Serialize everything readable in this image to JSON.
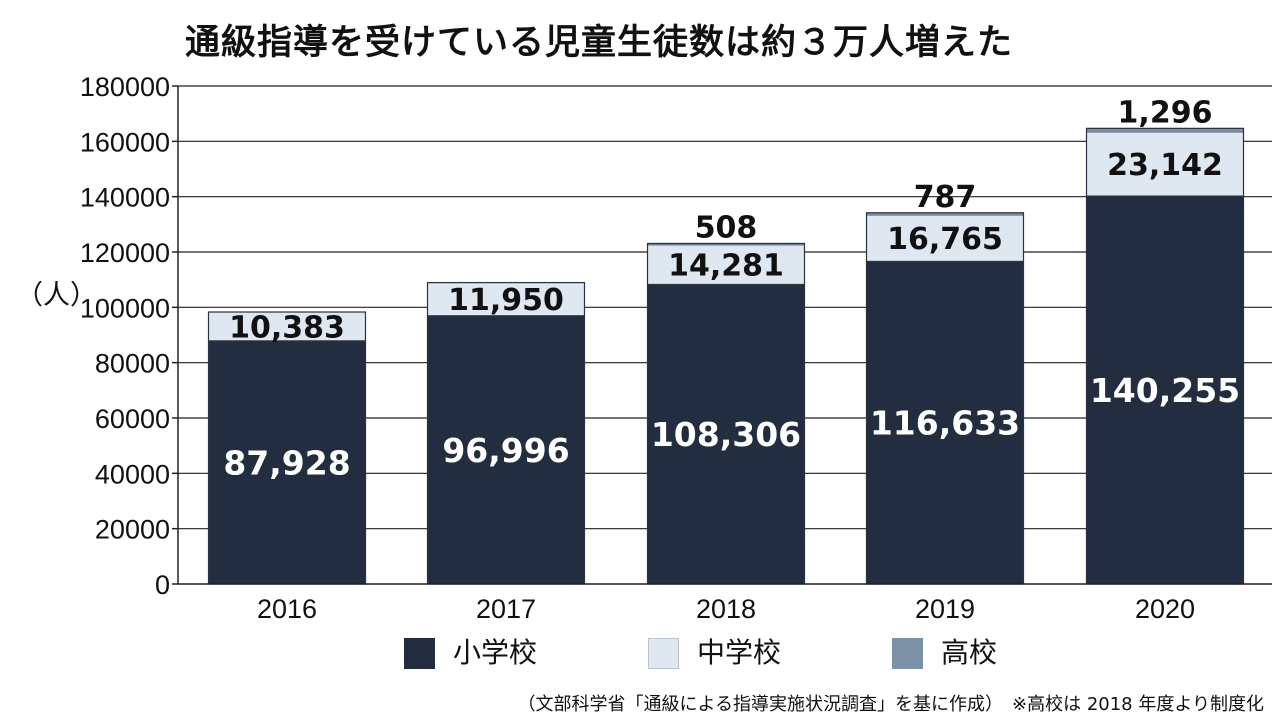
{
  "title": "通級指導を受けている児童生徒数は約３万人増えた",
  "ylabel": "（人）",
  "source": "（文部科学省「通級による指導実施状況調査」を基に作成）　※高校は 2018 年度より制度化",
  "colors": {
    "elementary": "#222d3f",
    "junior_high": "#dfe8f0",
    "high_school": "#7d91a6",
    "gridline": "#222222",
    "axis": "#222222"
  },
  "chart_data": {
    "type": "bar",
    "stacked": true,
    "categories": [
      "2016",
      "2017",
      "2018",
      "2019",
      "2020"
    ],
    "series": [
      {
        "name": "小学校",
        "values": [
          87928,
          96996,
          108306,
          116633,
          140255
        ],
        "labels": [
          "87,928",
          "96,996",
          "108,306",
          "116,633",
          "140,255"
        ]
      },
      {
        "name": "中学校",
        "values": [
          10383,
          11950,
          14281,
          16765,
          23142
        ],
        "labels": [
          "10,383",
          "11,950",
          "14,281",
          "16,765",
          "23,142"
        ]
      },
      {
        "name": "高校",
        "values": [
          0,
          0,
          508,
          787,
          1296
        ],
        "labels": [
          "",
          "",
          "508",
          "787",
          "1,296"
        ]
      }
    ],
    "yticks": [
      "0",
      "20000",
      "40000",
      "60000",
      "80000",
      "100000",
      "120000",
      "140000",
      "160000",
      "180000"
    ],
    "ylim": [
      0,
      180000
    ],
    "grid": true,
    "legend_position": "bottom"
  },
  "legend": [
    {
      "label": "小学校",
      "icon": "square-swatch"
    },
    {
      "label": "中学校",
      "icon": "square-swatch"
    },
    {
      "label": "高校",
      "icon": "square-swatch"
    }
  ]
}
